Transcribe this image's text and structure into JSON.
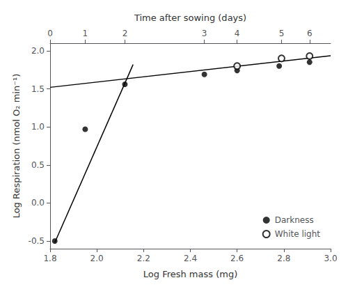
{
  "chart_data": {
    "type": "scatter",
    "xlabel": "Log Fresh mass (mg)",
    "ylabel": "Log Respiration (nmol O₂ min⁻¹)",
    "x2label": "Time after sowing (days)",
    "xlim": [
      1.8,
      3.0
    ],
    "ylim": [
      -0.6,
      2.1
    ],
    "xticks": [
      1.8,
      {
        "value": 2.0,
        "label": "2.0"
      },
      2.2,
      2.4,
      2.6,
      2.8,
      {
        "value": 3.0,
        "label": "3.0"
      }
    ],
    "yticks": [
      -0.5,
      {
        "value": 0.0,
        "label": "0.0"
      },
      0.5,
      {
        "value": 1.0,
        "label": "1.0"
      },
      1.5,
      {
        "value": 2.0,
        "label": "2.0"
      }
    ],
    "x2lim": [
      1.8,
      3.0
    ],
    "x2ticks": [
      {
        "value": 1.8,
        "label": "0"
      },
      {
        "value": 1.95,
        "label": "1"
      },
      {
        "value": 2.12,
        "label": "2"
      },
      {
        "value": 2.46,
        "label": "3"
      },
      {
        "value": 2.6,
        "label": "4"
      },
      {
        "value": 2.79,
        "label": "5"
      },
      {
        "value": 2.91,
        "label": "6"
      }
    ],
    "grid": false,
    "legend": "lower right",
    "series": [
      {
        "type": "line",
        "color": "#000000",
        "x": [
          1.8,
          3.0
        ],
        "values": [
          1.52,
          1.935
        ]
      },
      {
        "type": "line",
        "color": "#000000",
        "x": [
          1.82,
          2.155
        ],
        "values": [
          -0.52,
          1.82
        ]
      },
      {
        "name": "Darkness",
        "type": "scatter",
        "color": "#000000",
        "marker": "circle",
        "x": [
          1.82,
          1.95,
          2.12,
          2.46,
          2.6,
          2.78,
          2.91
        ],
        "values": [
          -0.5,
          0.97,
          1.56,
          1.69,
          1.74,
          1.8,
          1.85
        ]
      },
      {
        "name": "White light",
        "type": "scatter",
        "color": "#000000",
        "marker": "emptyCircle",
        "x": [
          2.6,
          2.79,
          2.91
        ],
        "values": [
          1.8,
          1.9,
          1.93
        ]
      }
    ]
  }
}
